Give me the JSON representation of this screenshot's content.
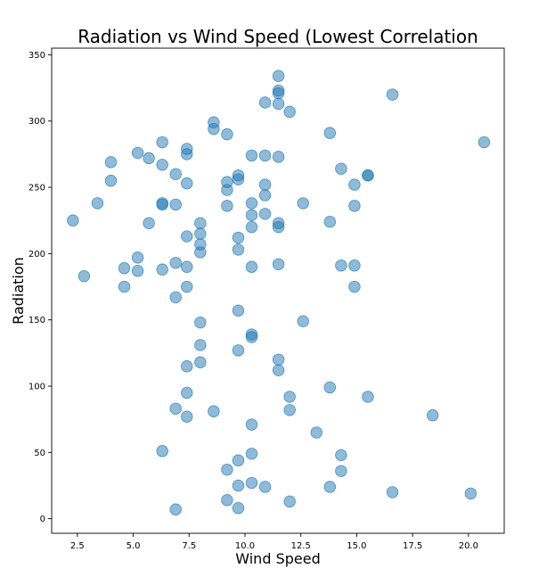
{
  "chart_data": {
    "type": "scatter",
    "title": "Radiation vs Wind Speed (Lowest Correlation",
    "xlabel": "Wind Speed",
    "ylabel": "Radiation",
    "xlim": [
      1.35,
      21.6
    ],
    "ylim": [
      -11,
      355
    ],
    "xticks": [
      "2.5",
      "5.0",
      "7.5",
      "10.0",
      "12.5",
      "15.0",
      "17.5",
      "20.0"
    ],
    "yticks": [
      "0",
      "50",
      "100",
      "150",
      "200",
      "250",
      "300",
      "350"
    ],
    "grid": false,
    "marker_color": "#1f77b4",
    "marker_alpha": 0.5,
    "series": [
      {
        "points": [
          [
            2.3,
            225
          ],
          [
            2.8,
            183
          ],
          [
            3.4,
            238
          ],
          [
            4.0,
            269
          ],
          [
            4.0,
            255
          ],
          [
            4.6,
            189
          ],
          [
            4.6,
            175
          ],
          [
            5.2,
            276
          ],
          [
            5.2,
            197
          ],
          [
            5.2,
            187
          ],
          [
            5.7,
            272
          ],
          [
            5.7,
            223
          ],
          [
            6.3,
            284
          ],
          [
            6.3,
            267
          ],
          [
            6.3,
            238
          ],
          [
            6.3,
            237
          ],
          [
            6.3,
            188
          ],
          [
            6.3,
            51
          ],
          [
            6.9,
            260
          ],
          [
            6.9,
            237
          ],
          [
            6.9,
            193
          ],
          [
            6.9,
            167
          ],
          [
            6.9,
            83
          ],
          [
            6.9,
            7
          ],
          [
            7.4,
            279
          ],
          [
            7.4,
            275
          ],
          [
            7.4,
            253
          ],
          [
            7.4,
            213
          ],
          [
            7.4,
            190
          ],
          [
            7.4,
            175
          ],
          [
            7.4,
            115
          ],
          [
            7.4,
            95
          ],
          [
            7.4,
            77
          ],
          [
            8.0,
            223
          ],
          [
            8.0,
            215
          ],
          [
            8.0,
            207
          ],
          [
            8.0,
            201
          ],
          [
            8.0,
            148
          ],
          [
            8.0,
            131
          ],
          [
            8.0,
            118
          ],
          [
            8.6,
            299
          ],
          [
            8.6,
            294
          ],
          [
            8.6,
            81
          ],
          [
            9.2,
            290
          ],
          [
            9.2,
            254
          ],
          [
            9.2,
            248
          ],
          [
            9.2,
            236
          ],
          [
            9.2,
            37
          ],
          [
            9.2,
            14
          ],
          [
            9.7,
            259
          ],
          [
            9.7,
            256
          ],
          [
            9.7,
            212
          ],
          [
            9.7,
            203
          ],
          [
            9.7,
            157
          ],
          [
            9.7,
            127
          ],
          [
            9.7,
            44
          ],
          [
            9.7,
            25
          ],
          [
            9.7,
            8
          ],
          [
            10.3,
            274
          ],
          [
            10.3,
            238
          ],
          [
            10.3,
            229
          ],
          [
            10.3,
            220
          ],
          [
            10.3,
            190
          ],
          [
            10.3,
            139
          ],
          [
            10.3,
            137
          ],
          [
            10.3,
            71
          ],
          [
            10.3,
            49
          ],
          [
            10.3,
            27
          ],
          [
            10.9,
            314
          ],
          [
            10.9,
            274
          ],
          [
            10.9,
            252
          ],
          [
            10.9,
            244
          ],
          [
            10.9,
            230
          ],
          [
            10.9,
            24
          ],
          [
            11.5,
            334
          ],
          [
            11.5,
            323
          ],
          [
            11.5,
            321
          ],
          [
            11.5,
            313
          ],
          [
            11.5,
            273
          ],
          [
            11.5,
            223
          ],
          [
            11.5,
            220
          ],
          [
            11.5,
            192
          ],
          [
            11.5,
            120
          ],
          [
            11.5,
            112
          ],
          [
            12.0,
            307
          ],
          [
            12.0,
            92
          ],
          [
            12.0,
            82
          ],
          [
            12.0,
            13
          ],
          [
            12.6,
            238
          ],
          [
            12.6,
            149
          ],
          [
            13.2,
            65
          ],
          [
            13.8,
            291
          ],
          [
            13.8,
            224
          ],
          [
            13.8,
            99
          ],
          [
            13.8,
            24
          ],
          [
            14.3,
            264
          ],
          [
            14.3,
            191
          ],
          [
            14.3,
            48
          ],
          [
            14.3,
            36
          ],
          [
            14.9,
            252
          ],
          [
            14.9,
            236
          ],
          [
            14.9,
            191
          ],
          [
            14.9,
            175
          ],
          [
            15.5,
            259
          ],
          [
            15.5,
            259
          ],
          [
            15.5,
            92
          ],
          [
            16.6,
            320
          ],
          [
            16.6,
            20
          ],
          [
            18.4,
            78
          ],
          [
            20.1,
            19
          ],
          [
            20.7,
            284
          ]
        ]
      }
    ]
  }
}
